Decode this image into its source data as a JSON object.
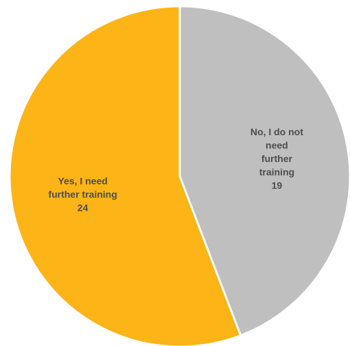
{
  "chart_data": {
    "type": "pie",
    "slices": [
      {
        "name": "No, I do not need further training",
        "label_lines": [
          "No, I do not",
          "need",
          "further",
          "training"
        ],
        "value": 19,
        "color": "#BFBFBF"
      },
      {
        "name": "Yes, I need further training",
        "label_lines": [
          "Yes, I need",
          "further training"
        ],
        "value": 24,
        "color": "#FDB416"
      }
    ],
    "start": "top",
    "direction": "clockwise",
    "data_labels": true
  }
}
